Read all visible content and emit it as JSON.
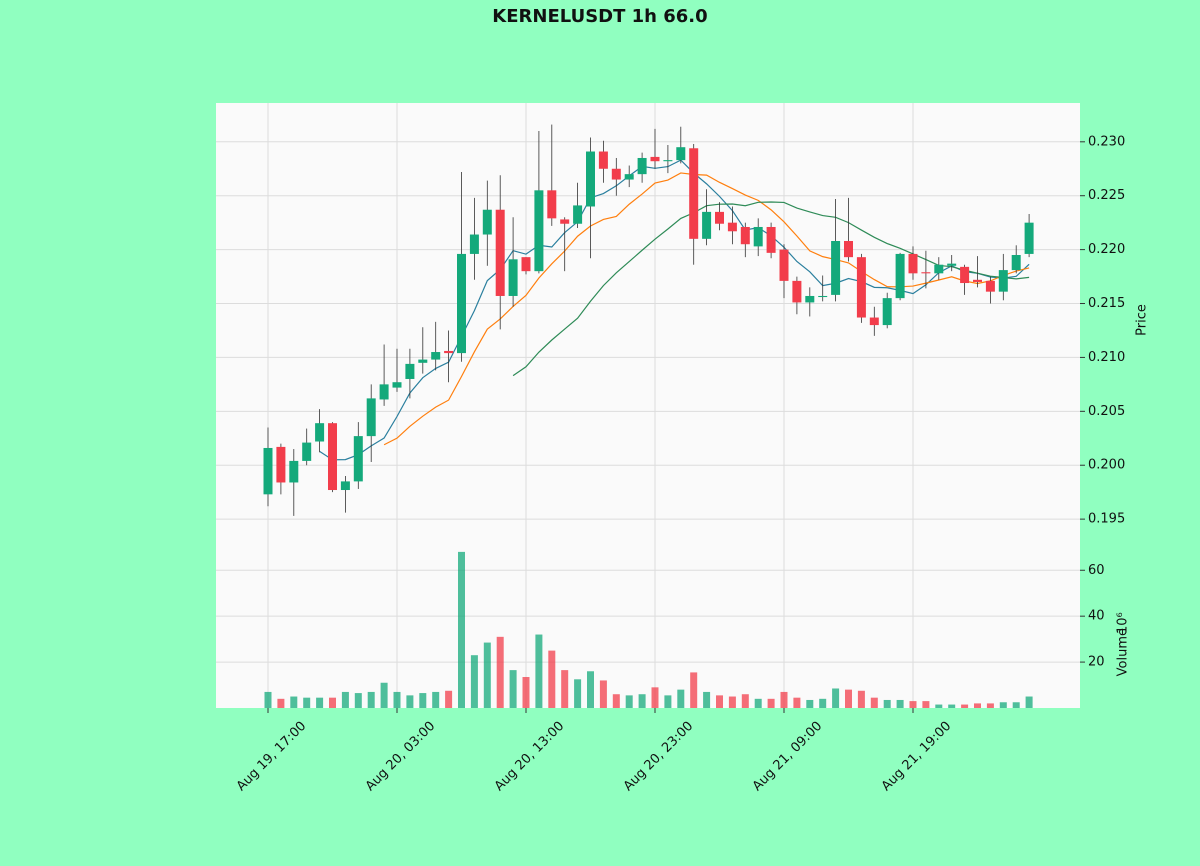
{
  "chart_data": {
    "type": "candlestick",
    "title": "KERNELUSDT 1h 66.0",
    "ylabel": "Price",
    "volume_label": "Volume",
    "volume_multiplier": "10⁶",
    "categories": [
      "Aug 19, 17:00",
      null,
      null,
      null,
      null,
      null,
      null,
      null,
      null,
      null,
      "Aug 20, 03:00",
      null,
      null,
      null,
      null,
      null,
      null,
      null,
      null,
      null,
      "Aug 20, 13:00",
      null,
      null,
      null,
      null,
      null,
      null,
      null,
      null,
      null,
      "Aug 20, 23:00",
      null,
      null,
      null,
      null,
      null,
      null,
      null,
      null,
      null,
      "Aug 21, 09:00",
      null,
      null,
      null,
      null,
      null,
      null,
      null,
      null,
      null,
      "Aug 21, 19:00",
      null,
      null,
      null,
      null,
      null,
      null,
      null,
      null,
      null
    ],
    "open": [
      0.1973,
      0.2017,
      0.1984,
      0.2004,
      0.2022,
      0.2039,
      0.1977,
      0.1985,
      0.2027,
      0.2061,
      0.2072,
      0.208,
      0.2095,
      0.2098,
      0.2106,
      0.2104,
      0.2196,
      0.2214,
      0.2237,
      0.2157,
      0.2193,
      0.218,
      0.2255,
      0.2228,
      0.2224,
      0.224,
      0.2291,
      0.2275,
      0.2265,
      0.227,
      0.2286,
      0.2282,
      0.2283,
      0.2294,
      0.221,
      0.2235,
      0.2225,
      0.2221,
      0.2203,
      0.2221,
      0.22,
      0.2171,
      0.2151,
      0.2156,
      0.2158,
      0.2208,
      0.2193,
      0.2137,
      0.213,
      0.2155,
      0.2196,
      0.2179,
      0.2178,
      0.2185,
      0.2184,
      0.2172,
      0.2171,
      0.2161,
      0.2181,
      0.2196
    ],
    "high": [
      0.2035,
      0.202,
      0.2015,
      0.2034,
      0.2052,
      0.204,
      0.199,
      0.204,
      0.2075,
      0.2112,
      0.2108,
      0.2108,
      0.2128,
      0.2133,
      0.2125,
      0.2272,
      0.2248,
      0.2264,
      0.2269,
      0.223,
      0.2193,
      0.231,
      0.2316,
      0.223,
      0.2262,
      0.2304,
      0.2301,
      0.2285,
      0.2278,
      0.229,
      0.2312,
      0.2297,
      0.2314,
      0.2298,
      0.2256,
      0.2244,
      0.224,
      0.2225,
      0.2229,
      0.2225,
      0.2205,
      0.2175,
      0.2165,
      0.2176,
      0.2247,
      0.2248,
      0.2196,
      0.2147,
      0.216,
      0.2197,
      0.2203,
      0.2199,
      0.2193,
      0.2195,
      0.2186,
      0.2194,
      0.2175,
      0.2196,
      0.2204,
      0.2233
    ],
    "low": [
      0.1962,
      0.1973,
      0.1953,
      0.2,
      0.2012,
      0.1975,
      0.1956,
      0.1978,
      0.2003,
      0.2055,
      0.2068,
      0.2062,
      0.2085,
      0.2088,
      0.2077,
      0.2096,
      0.2172,
      0.2185,
      0.2126,
      0.2147,
      0.2177,
      0.2178,
      0.2222,
      0.218,
      0.222,
      0.2192,
      0.2262,
      0.225,
      0.2258,
      0.2262,
      0.2275,
      0.2271,
      0.228,
      0.2186,
      0.2204,
      0.2218,
      0.2205,
      0.2193,
      0.2194,
      0.2192,
      0.2155,
      0.214,
      0.2138,
      0.2152,
      0.2152,
      0.2189,
      0.2132,
      0.212,
      0.2127,
      0.2153,
      0.2172,
      0.2164,
      0.2172,
      0.218,
      0.2158,
      0.2165,
      0.215,
      0.2153,
      0.2178,
      0.2193
    ],
    "close": [
      0.2016,
      0.1984,
      0.2004,
      0.2021,
      0.2039,
      0.1977,
      0.1985,
      0.2027,
      0.2062,
      0.2075,
      0.2077,
      0.2094,
      0.2098,
      0.2105,
      0.2104,
      0.2196,
      0.2214,
      0.2237,
      0.2157,
      0.2191,
      0.218,
      0.2255,
      0.2229,
      0.2224,
      0.2241,
      0.2291,
      0.2275,
      0.2265,
      0.227,
      0.2285,
      0.2282,
      0.2283,
      0.2295,
      0.221,
      0.2235,
      0.2224,
      0.2217,
      0.2205,
      0.2221,
      0.2197,
      0.2171,
      0.2151,
      0.2157,
      0.2157,
      0.2208,
      0.2193,
      0.2137,
      0.213,
      0.2155,
      0.2196,
      0.2178,
      0.2178,
      0.2186,
      0.2187,
      0.2169,
      0.217,
      0.2161,
      0.2181,
      0.2195,
      0.2225
    ],
    "volume": [
      7,
      4,
      5,
      4.5,
      4.5,
      4.5,
      7,
      6.5,
      7,
      11,
      7,
      5.5,
      6.5,
      7,
      7.5,
      68,
      23,
      28.5,
      31,
      16.5,
      13.5,
      32,
      25,
      16.5,
      12.5,
      16,
      12,
      6,
      5.5,
      6,
      9,
      5.5,
      8,
      15.5,
      7,
      5.5,
      5,
      6,
      4,
      4,
      7,
      4.5,
      3.5,
      4,
      8.5,
      8,
      7.5,
      4.5,
      3.5,
      3.5,
      3,
      3,
      1.5,
      1.5,
      1.5,
      2,
      2,
      2.5,
      2.5,
      5
    ],
    "up_color": "#14a97b",
    "down_color": "#f23d4b",
    "mav": [
      5,
      10,
      20
    ],
    "mav_colors": [
      "#2a7f9e",
      "#ff7f0e",
      "#2e8b57"
    ],
    "ylim": [
      0.1926,
      0.2336
    ],
    "yticks": [
      0.195,
      {
        "value": 0.2,
        "label": "0.200"
      },
      0.205,
      {
        "value": 0.21,
        "label": "0.210"
      },
      0.215,
      {
        "value": 0.22,
        "label": "0.220"
      },
      0.225,
      {
        "value": 0.23,
        "label": "0.230"
      }
    ],
    "volume_ylim": [
      0,
      71
    ],
    "volume_yticks": [
      20,
      40,
      60
    ],
    "grid": true
  }
}
